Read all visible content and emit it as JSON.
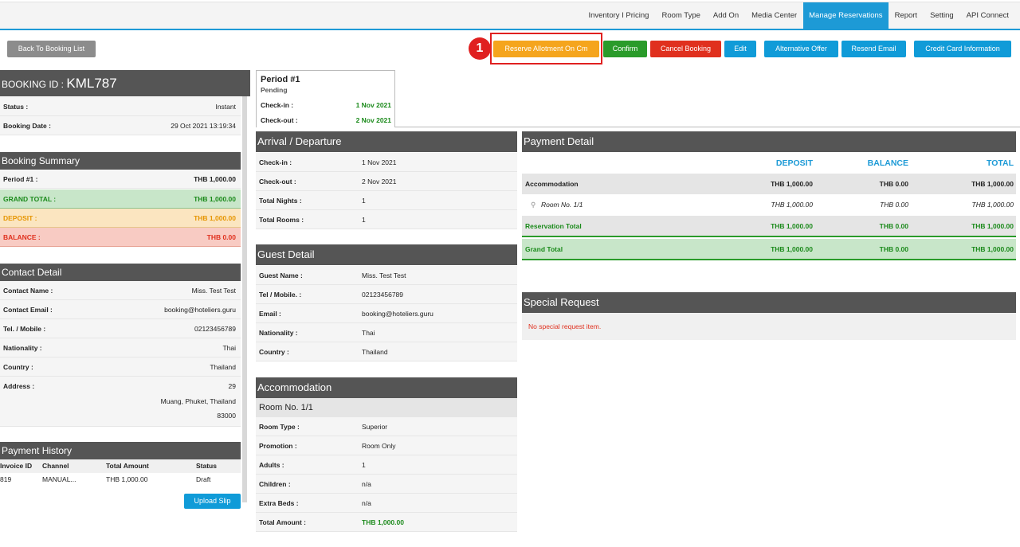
{
  "nav": {
    "items": [
      "Inventory I Pricing",
      "Room Type",
      "Add On",
      "Media Center",
      "Manage Reservations",
      "Report",
      "Setting",
      "API Connect"
    ],
    "active": "Manage Reservations"
  },
  "toolbar": {
    "back": "Back To Booking List",
    "reserve": "Reserve Allotment On Cm",
    "confirm": "Confirm",
    "cancel": "Cancel Booking",
    "edit": "Edit",
    "alternative": "Alternative Offer",
    "resend": "Resend Email",
    "credit": "Credit Card Information",
    "step_badge": "1"
  },
  "booking": {
    "id_label": "BOOKING ID : ",
    "id": "KML787",
    "status_label": "Status :",
    "status": "Instant",
    "date_label": "Booking Date :",
    "date": "29 Oct 2021 13:19:34"
  },
  "summary": {
    "title": "Booking Summary",
    "period_label": "Period #1 :",
    "period_value": "THB 1,000.00",
    "grand_label": "GRAND TOTAL :",
    "grand_value": "THB 1,000.00",
    "deposit_label": "DEPOSIT :",
    "deposit_value": "THB 1,000.00",
    "balance_label": "BALANCE :",
    "balance_value": "THB 0.00"
  },
  "contact": {
    "title": "Contact Detail",
    "name_label": "Contact Name :",
    "name": "Miss. Test Test",
    "email_label": "Contact Email :",
    "email": "booking@hoteliers.guru",
    "tel_label": "Tel. / Mobile :",
    "tel": "02123456789",
    "nationality_label": "Nationality :",
    "nationality": "Thai",
    "country_label": "Country :",
    "country": "Thailand",
    "address_label": "Address :",
    "address_1": "29",
    "address_2": "Muang, Phuket, Thailand",
    "address_3": "83000"
  },
  "payment_history": {
    "title": "Payment History",
    "columns": [
      "Invoice ID",
      "Channel",
      "Total Amount",
      "Status"
    ],
    "rows": [
      [
        "819",
        "MANUAL...",
        "THB 1,000.00",
        "Draft"
      ]
    ],
    "upload": "Upload Slip"
  },
  "period_tab": {
    "title": "Period #1",
    "status": "Pending",
    "checkin_label": "Check-in :",
    "checkin": "1 Nov 2021",
    "checkout_label": "Check-out :",
    "checkout": "2 Nov 2021"
  },
  "arrival": {
    "title": "Arrival / Departure",
    "checkin_label": "Check-in :",
    "checkin": "1 Nov 2021",
    "checkout_label": "Check-out :",
    "checkout": "2 Nov 2021",
    "nights_label": "Total Nights :",
    "nights": "1",
    "rooms_label": "Total Rooms :",
    "rooms": "1"
  },
  "guest": {
    "title": "Guest Detail",
    "name_label": "Guest Name :",
    "name": "Miss. Test Test",
    "tel_label": "Tel / Mobile. :",
    "tel": "02123456789",
    "email_label": "Email :",
    "email": "booking@hoteliers.guru",
    "nationality_label": "Nationality :",
    "nationality": "Thai",
    "country_label": "Country :",
    "country": "Thailand"
  },
  "accommodation": {
    "title": "Accommodation",
    "room": "Room No. 1/1",
    "type_label": "Room Type :",
    "type": "Superior",
    "promo_label": "Promotion :",
    "promo": "Room Only",
    "adults_label": "Adults :",
    "adults": "1",
    "children_label": "Children :",
    "children": "n/a",
    "extra_label": "Extra Beds :",
    "extra": "n/a",
    "amount_label": "Total Amount :",
    "amount": "THB 1,000.00"
  },
  "payment_detail": {
    "title": "Payment Detail",
    "col_deposit": "DEPOSIT",
    "col_balance": "BALANCE",
    "col_total": "TOTAL",
    "acc_label": "Accommodation",
    "acc": [
      "THB 1,000.00",
      "THB 0.00",
      "THB 1,000.00"
    ],
    "room_label": "Room No. 1/1",
    "room": [
      "THB 1,000.00",
      "THB 0.00",
      "THB 1,000.00"
    ],
    "res_label": "Reservation Total",
    "res": [
      "THB 1,000.00",
      "THB 0.00",
      "THB 1,000.00"
    ],
    "grand_label": "Grand Total",
    "grand": [
      "THB 1,000.00",
      "THB 0.00",
      "THB 1,000.00"
    ]
  },
  "special": {
    "title": "Special Request",
    "empty": "No special request item."
  },
  "icons": {
    "room_search": "magnifier-icon"
  }
}
